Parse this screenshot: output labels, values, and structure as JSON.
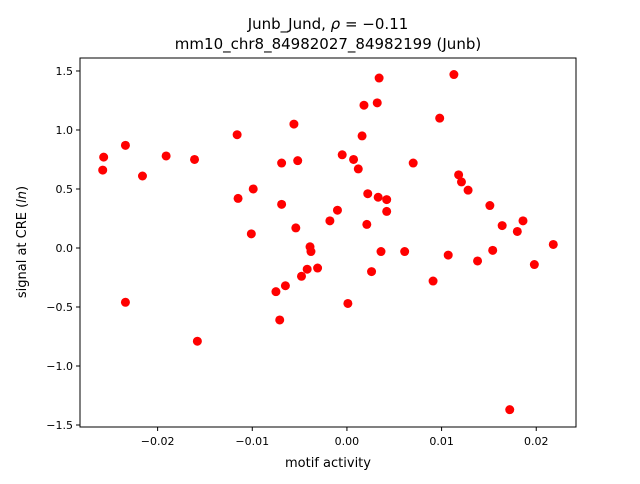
{
  "chart_data": {
    "type": "scatter",
    "title_line1_prefix": "Junb_Jund, ",
    "title_rho_symbol": "ρ",
    "title_rho_value": " = −0.11",
    "title_line2": "mm10_chr8_84982027_84982199 (Junb)",
    "xlabel": "motif activity",
    "ylabel_prefix": "signal at CRE (",
    "ylabel_italic": "ln",
    "ylabel_suffix": ")",
    "xlim": [
      -0.0282,
      0.0242
    ],
    "ylim": [
      -1.517,
      1.61
    ],
    "xticks": [
      -0.02,
      -0.01,
      0.0,
      0.01,
      0.02
    ],
    "xtick_labels": [
      "−0.02",
      "−0.01",
      "0.00",
      "0.01",
      "0.02"
    ],
    "yticks": [
      -1.5,
      -1.0,
      -0.5,
      0.0,
      0.5,
      1.0,
      1.5
    ],
    "ytick_labels": [
      "−1.5",
      "−1.0",
      "−0.5",
      "0.0",
      "0.5",
      "1.0",
      "1.5"
    ],
    "grid": false,
    "marker_color": "#ff0000",
    "points": [
      [
        -0.0257,
        0.77
      ],
      [
        -0.0258,
        0.66
      ],
      [
        -0.0234,
        0.87
      ],
      [
        -0.0234,
        -0.46
      ],
      [
        -0.0216,
        0.61
      ],
      [
        -0.0191,
        0.78
      ],
      [
        -0.0161,
        0.75
      ],
      [
        -0.0158,
        -0.79
      ],
      [
        -0.0116,
        0.96
      ],
      [
        -0.0115,
        0.42
      ],
      [
        -0.0099,
        0.5
      ],
      [
        -0.0101,
        0.12
      ],
      [
        -0.0069,
        0.72
      ],
      [
        -0.0075,
        -0.37
      ],
      [
        -0.0071,
        -0.61
      ],
      [
        -0.0069,
        0.37
      ],
      [
        -0.0065,
        -0.32
      ],
      [
        -0.0056,
        1.05
      ],
      [
        -0.0054,
        0.17
      ],
      [
        -0.0052,
        0.74
      ],
      [
        -0.0048,
        -0.24
      ],
      [
        -0.0042,
        -0.18
      ],
      [
        -0.0039,
        0.01
      ],
      [
        -0.0038,
        -0.03
      ],
      [
        -0.0031,
        -0.17
      ],
      [
        -0.0018,
        0.23
      ],
      [
        -0.001,
        0.32
      ],
      [
        -0.0005,
        0.79
      ],
      [
        0.0001,
        -0.47
      ],
      [
        0.0007,
        0.75
      ],
      [
        0.0012,
        0.67
      ],
      [
        0.0016,
        0.95
      ],
      [
        0.0018,
        1.21
      ],
      [
        0.0022,
        0.46
      ],
      [
        0.0021,
        0.2
      ],
      [
        0.0026,
        -0.2
      ],
      [
        0.0032,
        1.23
      ],
      [
        0.0033,
        0.43
      ],
      [
        0.0034,
        1.44
      ],
      [
        0.0036,
        -0.03
      ],
      [
        0.0042,
        0.41
      ],
      [
        0.0042,
        0.31
      ],
      [
        0.0061,
        -0.03
      ],
      [
        0.007,
        0.72
      ],
      [
        0.0091,
        -0.28
      ],
      [
        0.0098,
        1.1
      ],
      [
        0.0107,
        -0.06
      ],
      [
        0.0113,
        1.47
      ],
      [
        0.0118,
        0.62
      ],
      [
        0.0121,
        0.56
      ],
      [
        0.0128,
        0.49
      ],
      [
        0.0138,
        -0.11
      ],
      [
        0.0151,
        0.36
      ],
      [
        0.0154,
        -0.02
      ],
      [
        0.0164,
        0.19
      ],
      [
        0.018,
        0.14
      ],
      [
        0.0186,
        0.23
      ],
      [
        0.0198,
        -0.14
      ],
      [
        0.0218,
        0.03
      ],
      [
        0.0172,
        -1.37
      ]
    ]
  }
}
